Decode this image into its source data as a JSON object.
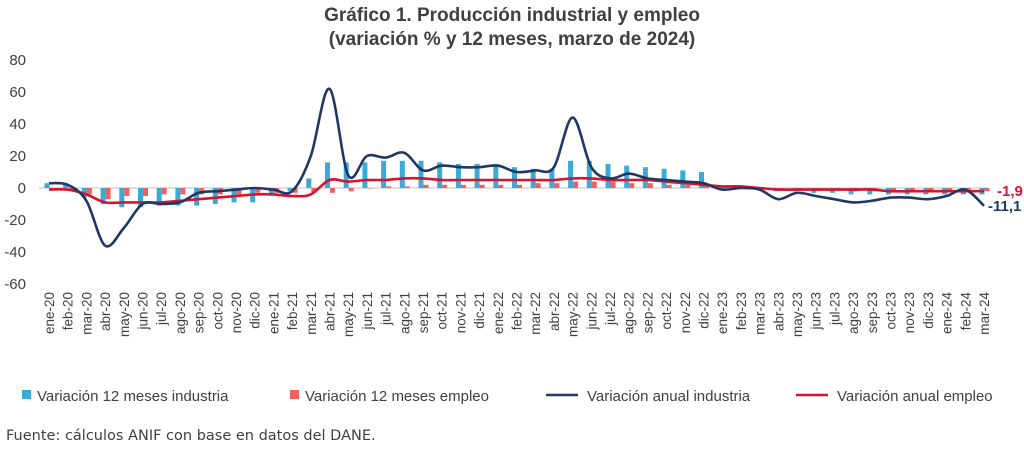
{
  "chart_data": {
    "type": "bar",
    "title_line1": "Gráfico 1. Producción industrial y empleo",
    "title_line2": "(variación % y 12 meses, marzo de 2024)",
    "ylim": [
      -60,
      80
    ],
    "yticks": [
      80,
      60,
      40,
      20,
      0,
      -20,
      -40,
      -60
    ],
    "ytick_labels": [
      "80",
      "60",
      "40",
      "20",
      "0",
      "-20",
      "-40",
      "-60"
    ],
    "categories": [
      "ene-20",
      "feb-20",
      "mar-20",
      "abr-20",
      "may-20",
      "jun-20",
      "jul-20",
      "ago-20",
      "sep-20",
      "oct-20",
      "nov-20",
      "dic-20",
      "ene-21",
      "feb-21",
      "mar-21",
      "abr-21",
      "may-21",
      "jun-21",
      "jul-21",
      "ago-21",
      "sep-21",
      "oct-21",
      "nov-21",
      "dic-21",
      "ene-22",
      "feb-22",
      "mar-22",
      "abr-22",
      "may-22",
      "jun-22",
      "jul-22",
      "ago-22",
      "sep-22",
      "oct-22",
      "nov-22",
      "dic-22",
      "ene-23",
      "feb-23",
      "mar-23",
      "abr-23",
      "may-23",
      "jun-23",
      "jul-23",
      "ago-23",
      "sep-23",
      "oct-23",
      "nov-23",
      "dic-23",
      "ene-24",
      "feb-24",
      "mar-24"
    ],
    "series": [
      {
        "name": "Variación 12 meses industria",
        "kind": "bar",
        "color": "#3aaad6",
        "values": [
          3,
          3,
          -6,
          -10,
          -12,
          -12,
          -11,
          -11,
          -11,
          -10,
          -9,
          -9,
          -4,
          -2,
          6,
          16,
          16,
          16,
          17,
          17,
          17,
          16,
          15,
          15,
          14,
          13,
          12,
          12,
          17,
          17,
          15,
          14,
          13,
          12,
          11,
          10,
          0,
          0,
          -1,
          -2,
          -2,
          -3,
          -3,
          -4,
          -4,
          -4,
          -4,
          -4,
          -4,
          -4,
          -4
        ]
      },
      {
        "name": "Variación 12 meses empleo",
        "kind": "bar",
        "color": "#f06060",
        "values": [
          -1,
          -1,
          -4,
          -7,
          -5,
          -5,
          -4,
          -4,
          -4,
          -4,
          -4,
          -3,
          -3,
          -3,
          -3,
          -3,
          -2,
          0,
          1,
          1,
          2,
          2,
          2,
          2,
          2,
          2,
          3,
          3,
          4,
          4,
          4,
          3,
          3,
          2,
          2,
          2,
          1,
          0,
          -1,
          -1,
          -1,
          -1,
          -1,
          -2,
          -2,
          -2,
          -2,
          -2,
          -2,
          -2,
          -2
        ]
      },
      {
        "name": "Variación anual industria",
        "kind": "line",
        "color": "#1f3864",
        "values": [
          3,
          2,
          -8,
          -36,
          -25,
          -10,
          -10,
          -9,
          -3,
          -2,
          -1,
          0,
          -1,
          -2,
          20,
          62,
          8,
          20,
          19,
          22,
          11,
          14,
          13,
          13,
          14,
          10,
          11,
          13,
          44,
          13,
          6,
          9,
          6,
          5,
          4,
          3,
          -1,
          0,
          -1,
          -7,
          -3,
          -5,
          -7,
          -9,
          -8,
          -6,
          -6,
          -7,
          -5,
          -1,
          -11.1
        ]
      },
      {
        "name": "Variación anual empleo",
        "kind": "line",
        "color": "#d8132f",
        "values": [
          -1,
          -1,
          -4,
          -9,
          -9,
          -9,
          -9,
          -8,
          -7,
          -6,
          -5,
          -4,
          -4,
          -5,
          -4,
          5,
          4,
          5,
          5,
          6,
          6,
          5,
          5,
          5,
          5,
          5,
          5,
          5,
          6,
          6,
          5,
          5,
          5,
          4,
          3,
          2,
          1,
          1,
          0,
          -1,
          -1,
          -1,
          -1,
          -1,
          -1,
          -2,
          -2,
          -2,
          -2,
          -2,
          -1.9
        ]
      }
    ],
    "end_labels": {
      "empleo": "-1,9",
      "industria": "-11,1"
    },
    "legend_position": "bottom"
  },
  "footer": {
    "source": "Fuente: cálculos ANIF con base en datos del DANE."
  }
}
